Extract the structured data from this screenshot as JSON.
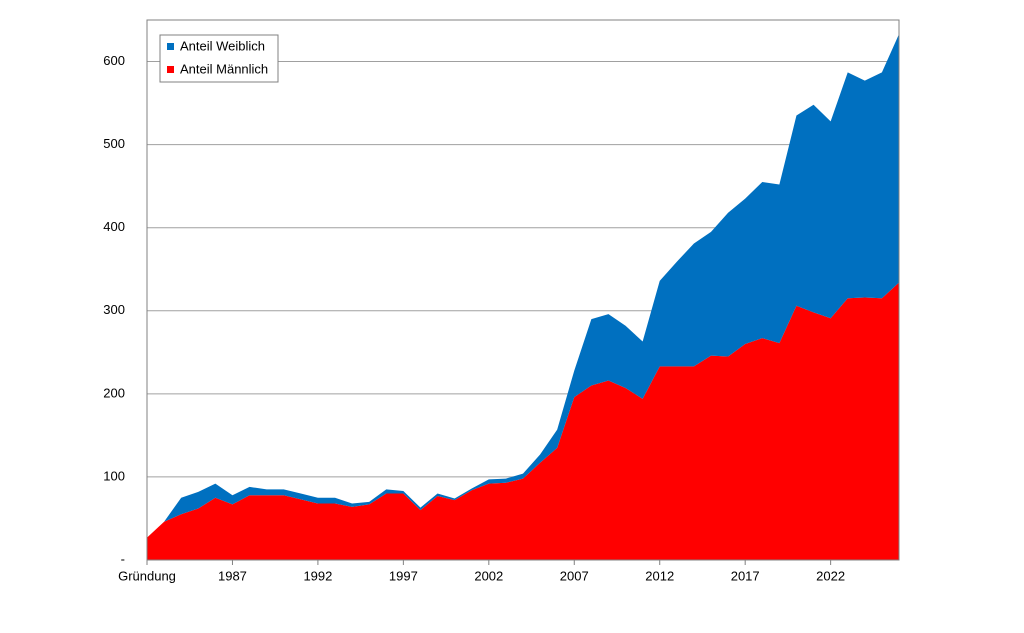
{
  "chart_data": {
    "type": "area",
    "stacked": true,
    "categories": [
      "Gründung",
      null,
      null,
      null,
      null,
      "1987",
      null,
      null,
      null,
      null,
      "1992",
      null,
      null,
      null,
      null,
      "1997",
      null,
      null,
      null,
      null,
      "2002",
      null,
      null,
      null,
      null,
      "2007",
      null,
      null,
      null,
      null,
      "2012",
      null,
      null,
      null,
      null,
      "2017",
      null,
      null,
      null,
      null,
      "2022",
      null,
      null,
      null,
      null
    ],
    "series": [
      {
        "name": "Anteil Weiblich",
        "color": "#0070c0",
        "values": [
          0,
          0,
          20,
          20,
          17,
          11,
          10,
          7,
          7,
          7,
          7,
          7,
          4,
          3,
          5,
          3,
          3,
          3,
          2,
          2,
          5,
          5,
          6,
          10,
          22,
          32,
          80,
          80,
          75,
          69,
          103,
          126,
          148,
          149,
          173,
          175,
          188,
          191,
          229,
          250,
          237,
          272,
          261,
          272,
          299
        ]
      },
      {
        "name": "Anteil Männlich",
        "color": "#ff0000",
        "values": [
          27,
          46,
          55,
          62,
          75,
          67,
          78,
          78,
          78,
          73,
          68,
          68,
          64,
          67,
          80,
          80,
          60,
          77,
          72,
          84,
          92,
          93,
          98,
          117,
          135,
          196,
          210,
          216,
          207,
          194,
          233,
          233,
          233,
          246,
          245,
          260,
          267,
          261,
          306,
          298,
          291,
          315,
          316,
          315,
          334
        ]
      }
    ],
    "ylim": [
      0,
      650
    ],
    "yticks": [
      {
        "value": 0,
        "label": "-"
      },
      100,
      200,
      300,
      400,
      500,
      600
    ],
    "grid": true,
    "legend": "upper left"
  }
}
